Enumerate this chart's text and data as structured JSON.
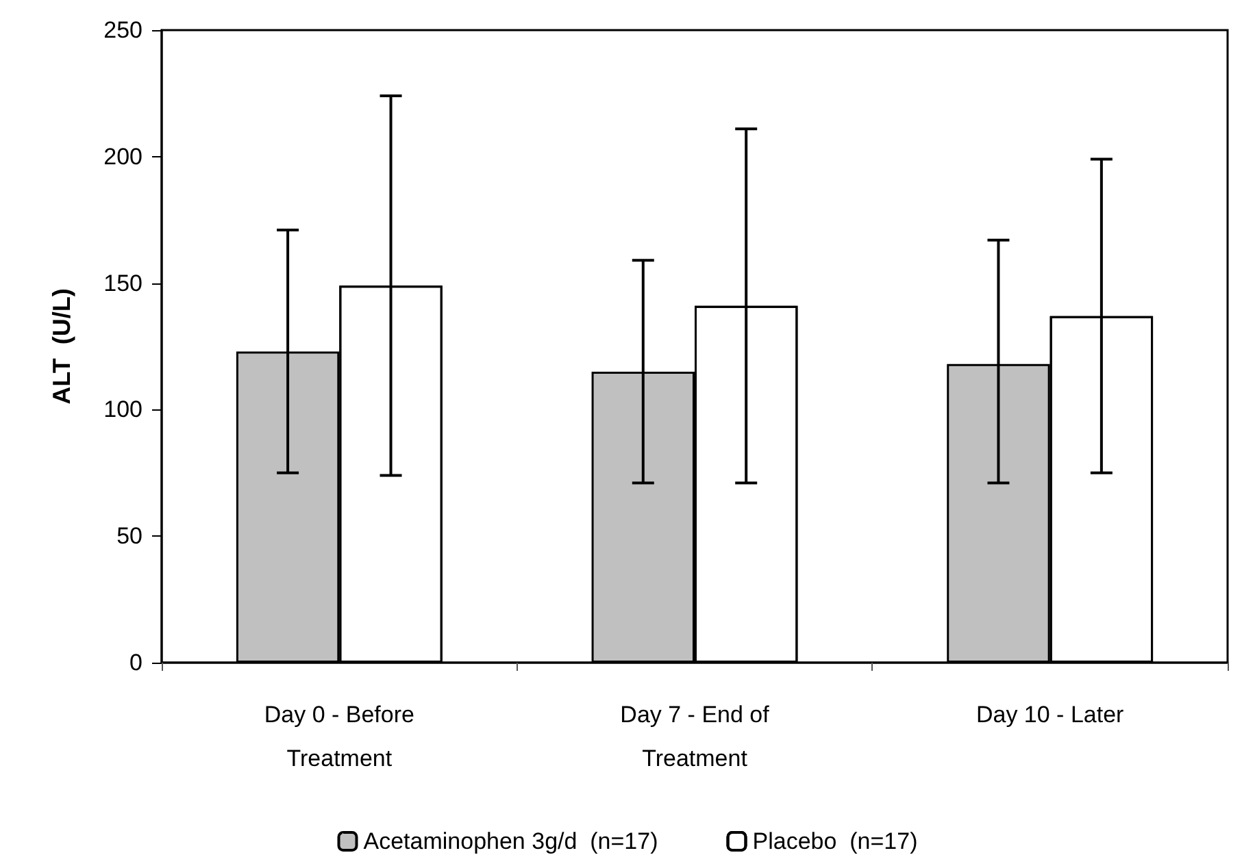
{
  "chart_data": {
    "type": "bar",
    "ylabel": "ALT  (U/L)",
    "categories": [
      "Day 0 - Before\nTreatment",
      "Day 7 - End of\nTreatment",
      "Day 10 - Later"
    ],
    "series": [
      {
        "name": "Acetaminophen 3g/d  (n=17)",
        "color": "#c0c0c0",
        "values": [
          123,
          115,
          118
        ],
        "errors": [
          [
            75,
            171
          ],
          [
            71,
            159
          ],
          [
            71,
            167
          ]
        ]
      },
      {
        "name": "Placebo  (n=17)",
        "color": "#ffffff",
        "values": [
          149,
          141,
          137
        ],
        "errors": [
          [
            74,
            224
          ],
          [
            71,
            211
          ],
          [
            75,
            199
          ]
        ]
      }
    ],
    "ylim": [
      0,
      250
    ],
    "yticks": [
      0,
      50,
      100,
      150,
      200,
      250
    ],
    "grid": false,
    "legend": "bottom"
  }
}
